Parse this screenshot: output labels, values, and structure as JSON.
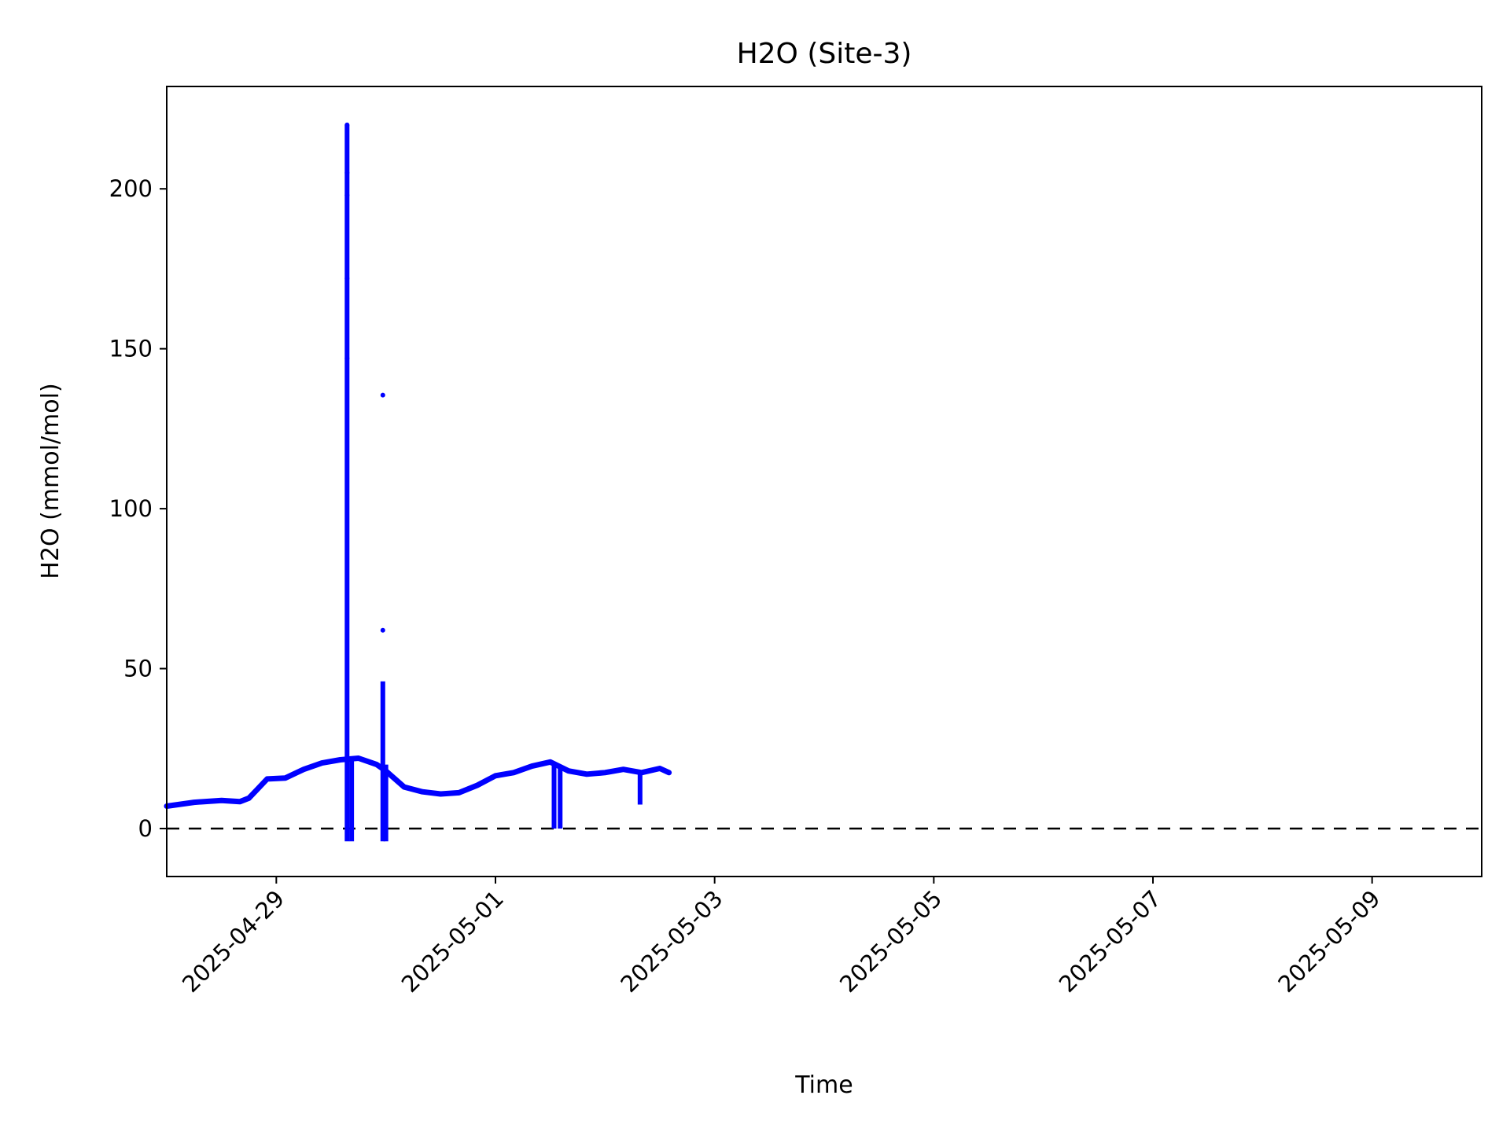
{
  "chart_data": {
    "type": "scatter",
    "title": "H2O (Site-3)",
    "xlabel": "Time",
    "ylabel": "H2O (mmol/mol)",
    "xlim": [
      "2025-04-28 00:00",
      "2025-05-10 00:00"
    ],
    "ylim": [
      -15,
      232
    ],
    "x_ticks": [
      "2025-04-29",
      "2025-05-01",
      "2025-05-03",
      "2025-05-05",
      "2025-05-07",
      "2025-05-09"
    ],
    "y_ticks": [
      0,
      50,
      100,
      150,
      200
    ],
    "grid": false,
    "reference_line": {
      "y": 0,
      "style": "dashed",
      "color": "#000000"
    },
    "marker_color": "#0000ff",
    "series": [
      {
        "name": "",
        "baseline": [
          [
            "2025-04-28 00:00",
            7.0
          ],
          [
            "2025-04-28 06:00",
            8.2
          ],
          [
            "2025-04-28 12:00",
            8.8
          ],
          [
            "2025-04-28 16:00",
            8.4
          ],
          [
            "2025-04-28 18:00",
            9.5
          ],
          [
            "2025-04-28 20:00",
            12.5
          ],
          [
            "2025-04-28 22:00",
            15.5
          ],
          [
            "2025-04-29 02:00",
            15.8
          ],
          [
            "2025-04-29 06:00",
            18.5
          ],
          [
            "2025-04-29 10:00",
            20.5
          ],
          [
            "2025-04-29 14:00",
            21.5
          ],
          [
            "2025-04-29 18:00",
            22.0
          ],
          [
            "2025-04-29 22:00",
            20.0
          ],
          [
            "2025-04-30 00:00",
            18.0
          ],
          [
            "2025-04-30 04:00",
            13.0
          ],
          [
            "2025-04-30 08:00",
            11.5
          ],
          [
            "2025-04-30 12:00",
            10.8
          ],
          [
            "2025-04-30 16:00",
            11.2
          ],
          [
            "2025-04-30 20:00",
            13.5
          ],
          [
            "2025-05-01 00:00",
            16.5
          ],
          [
            "2025-05-01 04:00",
            17.5
          ],
          [
            "2025-05-01 08:00",
            19.5
          ],
          [
            "2025-05-01 12:00",
            20.8
          ],
          [
            "2025-05-01 16:00",
            18.0
          ],
          [
            "2025-05-01 20:00",
            17.0
          ],
          [
            "2025-05-02 00:00",
            17.5
          ],
          [
            "2025-05-02 04:00",
            18.5
          ],
          [
            "2025-05-02 08:00",
            17.5
          ],
          [
            "2025-05-02 12:00",
            18.8
          ],
          [
            "2025-05-02 14:00",
            17.5
          ]
        ],
        "spikes": [
          {
            "x": "2025-04-29 15:30",
            "min": -4,
            "max": 220
          },
          {
            "x": "2025-04-29 16:30",
            "min": -4,
            "max": 22
          },
          {
            "x": "2025-04-29 23:20",
            "min": -4,
            "max": 46
          },
          {
            "x": "2025-04-30 00:00",
            "min": -4,
            "max": 20
          },
          {
            "x": "2025-05-01 12:50",
            "min": 0,
            "max": 20
          },
          {
            "x": "2025-05-01 14:10",
            "min": 0,
            "max": 19
          },
          {
            "x": "2025-05-02 07:40",
            "min": 7.5,
            "max": 18
          }
        ],
        "outliers": [
          [
            "2025-04-29 15:30",
            220
          ],
          [
            "2025-04-29 15:30",
            205
          ],
          [
            "2025-04-29 15:30",
            198
          ],
          [
            "2025-04-29 15:30",
            172
          ],
          [
            "2025-04-29 15:30",
            147
          ],
          [
            "2025-04-29 23:20",
            135.5
          ],
          [
            "2025-04-29 23:20",
            62
          ]
        ]
      }
    ]
  }
}
